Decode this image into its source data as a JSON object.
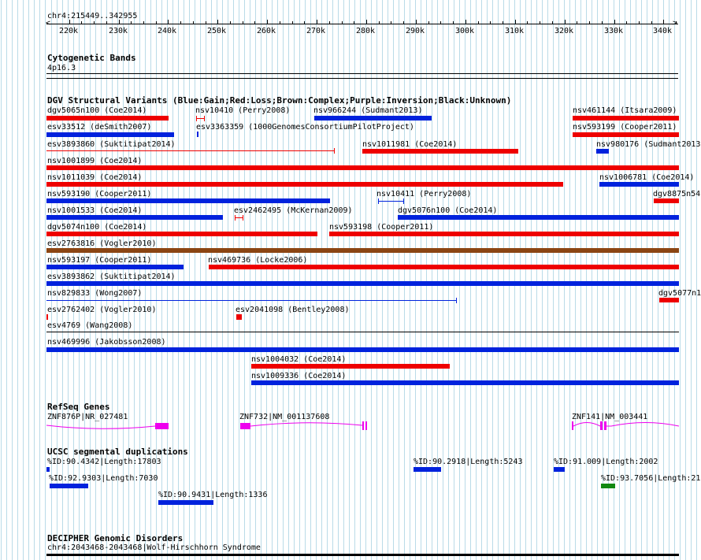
{
  "ruler": {
    "coordinates": "chr4:215449..342955",
    "ticks": [
      "220k",
      "230k",
      "240k",
      "250k",
      "260k",
      "270k",
      "280k",
      "290k",
      "300k",
      "310k",
      "320k",
      "330k",
      "340k"
    ]
  },
  "tracks": {
    "cytoband": {
      "title": "Cytogenetic Bands",
      "band": "4p16.3"
    },
    "dgv": {
      "title": "DGV Structural Variants (Blue:Gain;Red:Loss;Brown:Complex;Purple:Inversion;Black:Unknown)",
      "labels": [
        "dgv5065n100 (Coe2014)",
        "nsv10410 (Perry2008)",
        "nsv966244 (Sudmant2013)",
        "nsv461144 (Itsara2009)",
        "esv33512 (deSmith2007)",
        "esv3363359 (1000GenomesConsortiumPilotProject)",
        "nsv593199 (Cooper2011)",
        "esv3893860 (Suktitipat2014)",
        "nsv1011981 (Coe2014)",
        "nsv980176 (Sudmant2013",
        "nsv1001899 (Coe2014)",
        "nsv1011039 (Coe2014)",
        "nsv1006781 (Coe2014)",
        "nsv593190 (Cooper2011)",
        "nsv10411 (Perry2008)",
        "dgv8875n54",
        "nsv1001533 (Coe2014)",
        "esv2462495 (McKernan2009)",
        "dgv5076n100 (Coe2014)",
        "dgv5074n100 (Coe2014)",
        "nsv593198 (Cooper2011)",
        "esv2763816 (Vogler2010)",
        "nsv593197 (Cooper2011)",
        "nsv469736 (Locke2006)",
        "esv3893862 (Suktitipat2014)",
        "nsv829833 (Wong2007)",
        "dgv5077n1",
        "esv2762402 (Vogler2010)",
        "esv2041098 (Bentley2008)",
        "esv4769 (Wang2008)",
        "nsv469996 (Jakobsson2008)",
        "nsv1004032 (Coe2014)",
        "nsv1009336 (Coe2014)"
      ]
    },
    "refseq": {
      "title": "RefSeq Genes",
      "genes": [
        "ZNF876P|NR_027481",
        "ZNF732|NM_001137608",
        "ZNF141|NM_003441"
      ]
    },
    "segdup": {
      "title": "UCSC segmental duplications",
      "labels": [
        "%ID:90.4342|Length:17803",
        "%ID:90.2918|Length:5243",
        "%ID:91.009|Length:2002",
        "%ID:92.9303|Length:7030",
        "%ID:93.7056|Length:21",
        "%ID:90.9431|Length:1336"
      ]
    },
    "decipher": {
      "title": "DECIPHER Genomic Disorders",
      "label": "chr4:2043468-2043468|Wolf-Hirschhorn Syndrome"
    }
  },
  "colors": {
    "gain": "#0022dd",
    "loss": "#ee0000",
    "complex": "#8b4513",
    "gene": "#ee00ee",
    "segdup_blue": "#0022dd",
    "segdup_green": "#118811",
    "grid": "#b9dbe8"
  }
}
